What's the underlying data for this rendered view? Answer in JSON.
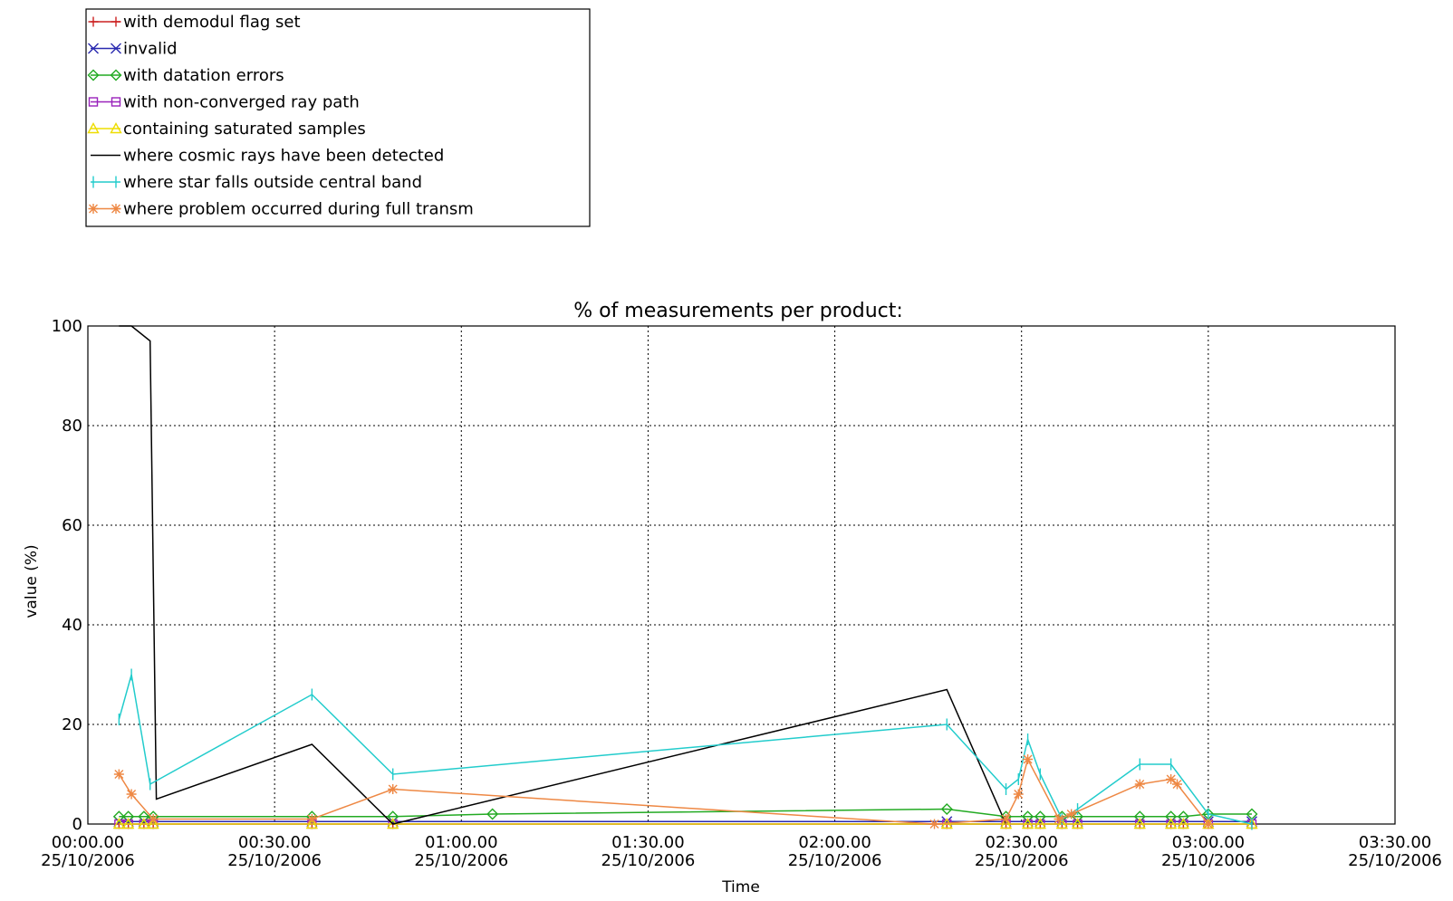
{
  "chart_data": {
    "type": "line",
    "title": "% of measurements per product:",
    "xlabel": "Time",
    "ylabel": "value (%)",
    "ylim": [
      0,
      100
    ],
    "y_ticks": [
      0,
      20,
      40,
      60,
      80,
      100
    ],
    "x_range": [
      "2006-10-25 00:00:00",
      "2006-10-25 03:30:00"
    ],
    "x_tick_labels": [
      {
        "time": "2006-10-25 00:00:00",
        "line1": "00:00.00",
        "line2": "25/10/2006"
      },
      {
        "time": "2006-10-25 00:30:00",
        "line1": "00:30.00",
        "line2": "25/10/2006"
      },
      {
        "time": "2006-10-25 01:00:00",
        "line1": "01:00.00",
        "line2": "25/10/2006"
      },
      {
        "time": "2006-10-25 01:30:00",
        "line1": "01:30.00",
        "line2": "25/10/2006"
      },
      {
        "time": "2006-10-25 02:00:00",
        "line1": "02:00.00",
        "line2": "25/10/2006"
      },
      {
        "time": "2006-10-25 02:30:00",
        "line1": "02:30.00",
        "line2": "25/10/2006"
      },
      {
        "time": "2006-10-25 03:00:00",
        "line1": "03:00.00",
        "line2": "25/10/2006"
      },
      {
        "time": "2006-10-25 03:30:00",
        "line1": "03:30.00",
        "line2": "25/10/2006"
      }
    ],
    "grid": true,
    "legend_position": "top-left",
    "series": [
      {
        "name": "with demodul flag set",
        "color": "#cc2222",
        "marker": "plus",
        "points": [
          [
            "00:05:00",
            0
          ],
          [
            "00:06:30",
            0
          ],
          [
            "00:09:00",
            0
          ],
          [
            "00:10:30",
            0
          ],
          [
            "00:36:00",
            0
          ],
          [
            "00:49:00",
            0
          ],
          [
            "02:18:00",
            0
          ],
          [
            "02:27:30",
            0
          ],
          [
            "02:31:00",
            0
          ],
          [
            "02:33:00",
            0
          ],
          [
            "02:36:30",
            0
          ],
          [
            "02:39:00",
            0
          ],
          [
            "02:49:00",
            0
          ],
          [
            "02:54:00",
            0
          ],
          [
            "02:56:00",
            0
          ],
          [
            "03:00:00",
            0
          ],
          [
            "03:07:00",
            0
          ]
        ]
      },
      {
        "name": "invalid",
        "color": "#2a2ab0",
        "marker": "x",
        "points": [
          [
            "00:05:00",
            0.5
          ],
          [
            "00:06:30",
            0.5
          ],
          [
            "00:09:00",
            0.5
          ],
          [
            "00:10:30",
            0.5
          ],
          [
            "00:36:00",
            0.5
          ],
          [
            "00:49:00",
            0.5
          ],
          [
            "02:18:00",
            0.5
          ],
          [
            "02:27:30",
            0.5
          ],
          [
            "02:31:00",
            0.5
          ],
          [
            "02:33:00",
            0.5
          ],
          [
            "02:36:30",
            0.5
          ],
          [
            "02:39:00",
            0.5
          ],
          [
            "02:49:00",
            0.5
          ],
          [
            "02:54:00",
            0.5
          ],
          [
            "02:56:00",
            0.5
          ],
          [
            "03:00:00",
            0.5
          ],
          [
            "03:07:00",
            0.5
          ]
        ]
      },
      {
        "name": "with datation errors",
        "color": "#22aa22",
        "marker": "diamond",
        "points": [
          [
            "00:05:00",
            1.5
          ],
          [
            "00:06:30",
            1.5
          ],
          [
            "00:09:00",
            1.5
          ],
          [
            "00:10:30",
            1.5
          ],
          [
            "00:36:00",
            1.5
          ],
          [
            "00:49:00",
            1.5
          ],
          [
            "01:05:00",
            2.0
          ],
          [
            "02:18:00",
            3.0
          ],
          [
            "02:27:30",
            1.5
          ],
          [
            "02:31:00",
            1.5
          ],
          [
            "02:33:00",
            1.5
          ],
          [
            "02:36:30",
            1.5
          ],
          [
            "02:39:00",
            1.5
          ],
          [
            "02:49:00",
            1.5
          ],
          [
            "02:54:00",
            1.5
          ],
          [
            "02:56:00",
            1.5
          ],
          [
            "03:00:00",
            2.0
          ],
          [
            "03:07:00",
            2.0
          ]
        ]
      },
      {
        "name": "with non-converged ray path",
        "color": "#9922bb",
        "marker": "square",
        "points": [
          [
            "00:05:00",
            0
          ],
          [
            "00:06:30",
            0
          ],
          [
            "00:09:00",
            0
          ],
          [
            "00:10:30",
            0
          ],
          [
            "00:36:00",
            0
          ],
          [
            "00:49:00",
            0
          ],
          [
            "02:18:00",
            0
          ],
          [
            "02:27:30",
            0
          ],
          [
            "02:31:00",
            0
          ],
          [
            "02:33:00",
            0
          ],
          [
            "02:36:30",
            0
          ],
          [
            "02:39:00",
            0
          ],
          [
            "02:49:00",
            0
          ],
          [
            "02:54:00",
            0
          ],
          [
            "02:56:00",
            0
          ],
          [
            "03:00:00",
            0
          ],
          [
            "03:07:00",
            0
          ]
        ]
      },
      {
        "name": "containing saturated samples",
        "color": "#eedd00",
        "marker": "triangle",
        "points": [
          [
            "00:05:00",
            0
          ],
          [
            "00:06:30",
            0
          ],
          [
            "00:09:00",
            0
          ],
          [
            "00:10:30",
            0
          ],
          [
            "00:36:00",
            0
          ],
          [
            "00:49:00",
            0
          ],
          [
            "02:18:00",
            0
          ],
          [
            "02:27:30",
            0
          ],
          [
            "02:31:00",
            0
          ],
          [
            "02:33:00",
            0
          ],
          [
            "02:36:30",
            0
          ],
          [
            "02:39:00",
            0
          ],
          [
            "02:49:00",
            0
          ],
          [
            "02:54:00",
            0
          ],
          [
            "02:56:00",
            0
          ],
          [
            "03:00:00",
            0
          ],
          [
            "03:07:00",
            0
          ]
        ]
      },
      {
        "name": "where cosmic rays have been detected",
        "color": "#000000",
        "marker": "none",
        "points": [
          [
            "00:05:00",
            100
          ],
          [
            "00:07:00",
            100
          ],
          [
            "00:10:00",
            97
          ],
          [
            "00:11:00",
            5
          ],
          [
            "00:36:00",
            16
          ],
          [
            "00:49:00",
            0
          ],
          [
            "02:18:00",
            27
          ],
          [
            "02:27:30",
            0
          ]
        ]
      },
      {
        "name": "where star falls outside central band",
        "color": "#22cccc",
        "marker": "vbar",
        "points": [
          [
            "00:05:00",
            21
          ],
          [
            "00:07:00",
            30
          ],
          [
            "00:10:00",
            8
          ],
          [
            "00:36:00",
            26
          ],
          [
            "00:49:00",
            10
          ],
          [
            "02:18:00",
            20
          ],
          [
            "02:27:30",
            7
          ],
          [
            "02:29:30",
            9
          ],
          [
            "02:31:00",
            17
          ],
          [
            "02:33:00",
            10
          ],
          [
            "02:36:30",
            1
          ],
          [
            "02:39:00",
            3
          ],
          [
            "02:49:00",
            12
          ],
          [
            "02:54:00",
            12
          ],
          [
            "03:00:00",
            2
          ],
          [
            "03:07:00",
            0
          ]
        ]
      },
      {
        "name": "where problem occurred during full transm",
        "color": "#ee8844",
        "marker": "asterisk",
        "points": [
          [
            "00:05:00",
            10
          ],
          [
            "00:07:00",
            6
          ],
          [
            "00:10:30",
            1
          ],
          [
            "00:36:00",
            1
          ],
          [
            "00:49:00",
            7
          ],
          [
            "02:16:00",
            0
          ],
          [
            "02:27:30",
            1
          ],
          [
            "02:29:30",
            6
          ],
          [
            "02:31:00",
            13
          ],
          [
            "02:36:00",
            1
          ],
          [
            "02:38:00",
            2
          ],
          [
            "02:49:00",
            8
          ],
          [
            "02:54:00",
            9
          ],
          [
            "02:55:00",
            8
          ],
          [
            "03:00:00",
            0
          ]
        ]
      }
    ]
  }
}
